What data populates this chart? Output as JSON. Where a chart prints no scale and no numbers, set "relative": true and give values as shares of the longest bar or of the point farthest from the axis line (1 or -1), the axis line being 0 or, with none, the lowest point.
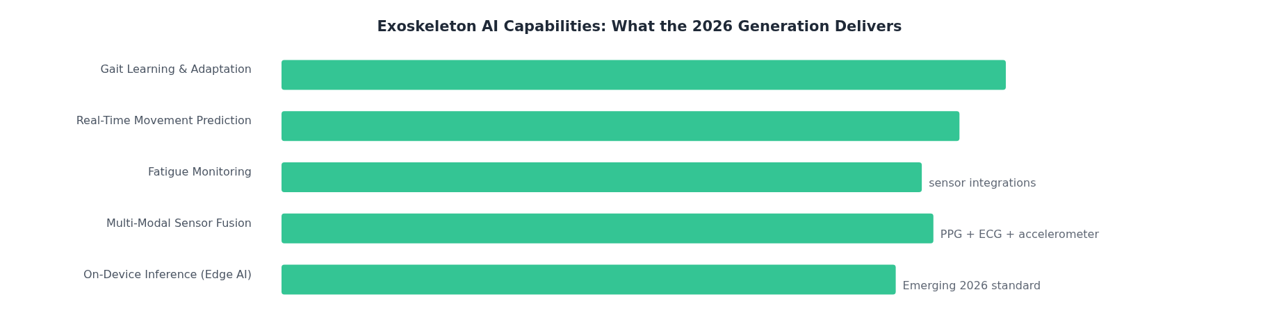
{
  "chart_data": {
    "type": "bar",
    "orientation": "horizontal",
    "relative": true,
    "title": "Exoskeleton AI Capabilities: What the 2026 Generation Delivers",
    "categories": [
      "Gait Learning & Adaptation",
      "Real-Time Movement Prediction",
      "Fatigue Monitoring",
      "Multi-Modal Sensor Fusion",
      "On-Device Inference (Edge AI)"
    ],
    "values": [
      1,
      0.936,
      0.884,
      0.9,
      0.848
    ],
    "color": "#34c594",
    "annotations": [
      {
        "text": "sensor integrations",
        "x": 0.884,
        "y": "Fatigue Monitoring"
      },
      {
        "text": "PPG + ECG + accelerometer",
        "x": 0.9,
        "y": "Multi-Modal Sensor Fusion"
      },
      {
        "text": "Emerging 2026 standard",
        "x": 0.848,
        "y": "On-Device Inference (Edge AI)"
      }
    ]
  }
}
